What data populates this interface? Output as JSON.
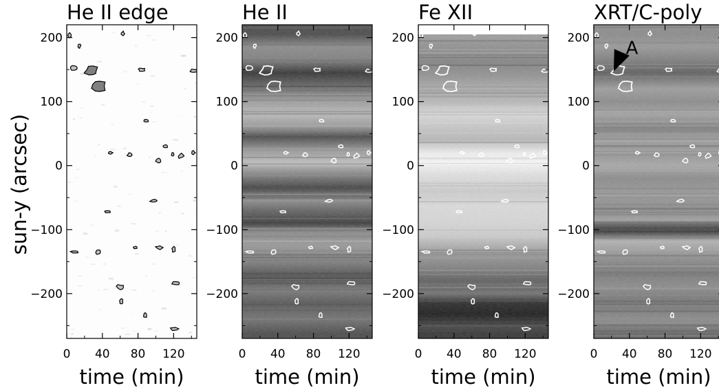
{
  "figure": {
    "ylabel": "sun-y (arcsec)"
  },
  "chart_data": [
    {
      "type": "heatmap",
      "title": "He II edge",
      "xlabel": "time (min)",
      "ylabel": "sun-y (arcsec)",
      "xlim": [
        0,
        146
      ],
      "ylim": [
        -270,
        220
      ],
      "xticks": [
        "0",
        "40",
        "80",
        "120"
      ],
      "xtick_values": [
        0,
        40,
        80,
        120
      ],
      "yticks": [
        "200",
        "100",
        "0",
        "−100",
        "−200"
      ],
      "ytick_values": [
        200,
        100,
        0,
        -100,
        -200
      ],
      "colormap": "white background with dark contour patches",
      "contours": "black",
      "contour_events": [
        {
          "t": 28,
          "y": 148
        },
        {
          "t": 36,
          "y": 124
        },
        {
          "t": 8,
          "y": 153
        },
        {
          "t": 84,
          "y": 150
        },
        {
          "t": 143,
          "y": 148
        },
        {
          "t": 63,
          "y": 206
        },
        {
          "t": 3,
          "y": 204
        },
        {
          "t": 14,
          "y": 187
        },
        {
          "t": 89,
          "y": 70
        },
        {
          "t": 49,
          "y": 20
        },
        {
          "t": 71,
          "y": 17
        },
        {
          "t": 111,
          "y": 30
        },
        {
          "t": 103,
          "y": 8
        },
        {
          "t": 119,
          "y": 17
        },
        {
          "t": 128,
          "y": 15
        },
        {
          "t": 142,
          "y": 20
        },
        {
          "t": 46,
          "y": -72
        },
        {
          "t": 98,
          "y": -55
        },
        {
          "t": 77,
          "y": -128
        },
        {
          "t": 104,
          "y": -128
        },
        {
          "t": 120,
          "y": -131
        },
        {
          "t": 9,
          "y": -135
        },
        {
          "t": 35,
          "y": -135
        },
        {
          "t": 122,
          "y": -184
        },
        {
          "t": 60,
          "y": -190
        },
        {
          "t": 61,
          "y": -212
        },
        {
          "t": 88,
          "y": -234
        },
        {
          "t": 121,
          "y": -255
        }
      ]
    },
    {
      "type": "heatmap",
      "title": "He II",
      "xlabel": "time (min)",
      "xlim": [
        0,
        146
      ],
      "ylim": [
        -270,
        220
      ],
      "xticks": [
        "0",
        "40",
        "80",
        "120"
      ],
      "xtick_values": [
        0,
        40,
        80,
        120
      ],
      "yticks": [
        "200",
        "100",
        "0",
        "−100",
        "−200"
      ],
      "ytick_values": [
        200,
        100,
        0,
        -100,
        -200
      ],
      "colormap": "grayscale",
      "contours": "white",
      "bands": [
        {
          "y": 205,
          "tone": 0.3
        },
        {
          "y": 185,
          "tone": 0.55
        },
        {
          "y": 165,
          "tone": 0.5
        },
        {
          "y": 145,
          "tone": 0.22
        },
        {
          "y": 125,
          "tone": 0.4
        },
        {
          "y": 100,
          "tone": 0.62
        },
        {
          "y": 80,
          "tone": 0.72
        },
        {
          "y": 60,
          "tone": 0.6
        },
        {
          "y": 45,
          "tone": 0.3
        },
        {
          "y": 25,
          "tone": 0.58
        },
        {
          "y": 5,
          "tone": 0.75
        },
        {
          "y": -15,
          "tone": 0.5
        },
        {
          "y": -35,
          "tone": 0.28
        },
        {
          "y": -55,
          "tone": 0.55
        },
        {
          "y": -70,
          "tone": 0.4
        },
        {
          "y": -90,
          "tone": 0.25
        },
        {
          "y": -105,
          "tone": 0.55
        },
        {
          "y": -125,
          "tone": 0.6
        },
        {
          "y": -150,
          "tone": 0.5
        },
        {
          "y": -175,
          "tone": 0.3
        },
        {
          "y": -195,
          "tone": 0.48
        },
        {
          "y": -215,
          "tone": 0.35
        },
        {
          "y": -240,
          "tone": 0.45
        },
        {
          "y": -262,
          "tone": 0.3
        }
      ]
    },
    {
      "type": "heatmap",
      "title": "Fe XII",
      "xlabel": "time (min)",
      "xlim": [
        0,
        146
      ],
      "ylim": [
        -270,
        220
      ],
      "xticks": [
        "0",
        "40",
        "80",
        "120"
      ],
      "xtick_values": [
        0,
        40,
        80,
        120
      ],
      "yticks": [
        "200",
        "100",
        "0",
        "−100",
        "−200"
      ],
      "ytick_values": [
        200,
        100,
        0,
        -100,
        -200
      ],
      "colormap": "grayscale",
      "contours": "white",
      "bands": [
        {
          "y": 200,
          "tone": 0.62
        },
        {
          "y": 180,
          "tone": 0.55
        },
        {
          "y": 160,
          "tone": 0.52
        },
        {
          "y": 140,
          "tone": 0.58
        },
        {
          "y": 120,
          "tone": 0.68
        },
        {
          "y": 100,
          "tone": 0.72
        },
        {
          "y": 80,
          "tone": 0.85
        },
        {
          "y": 60,
          "tone": 0.78
        },
        {
          "y": 40,
          "tone": 0.72
        },
        {
          "y": 20,
          "tone": 0.93
        },
        {
          "y": 5,
          "tone": 0.97
        },
        {
          "y": -15,
          "tone": 0.88
        },
        {
          "y": -40,
          "tone": 0.8
        },
        {
          "y": -65,
          "tone": 0.86
        },
        {
          "y": -90,
          "tone": 0.84
        },
        {
          "y": -110,
          "tone": 0.8
        },
        {
          "y": -135,
          "tone": 0.62
        },
        {
          "y": -160,
          "tone": 0.5
        },
        {
          "y": -180,
          "tone": 0.38
        },
        {
          "y": -200,
          "tone": 0.45
        },
        {
          "y": -215,
          "tone": 0.18
        },
        {
          "y": -232,
          "tone": 0.12
        },
        {
          "y": -250,
          "tone": 0.28
        },
        {
          "y": -265,
          "tone": 0.22
        }
      ]
    },
    {
      "type": "heatmap",
      "title": "XRT/C-poly",
      "xlabel": "time (min)",
      "xlim": [
        0,
        146
      ],
      "ylim": [
        -270,
        220
      ],
      "xticks": [
        "0",
        "40",
        "80",
        "120"
      ],
      "xtick_values": [
        0,
        40,
        80,
        120
      ],
      "yticks": [
        "200",
        "100",
        "0",
        "−100",
        "−200"
      ],
      "ytick_values": [
        200,
        100,
        0,
        -100,
        -200
      ],
      "colormap": "grayscale",
      "contours": "white",
      "annotations": [
        {
          "text": "A",
          "x": 36,
          "y": 185,
          "arrow_to": [
            18,
            149
          ]
        }
      ],
      "bands": [
        {
          "y": 205,
          "tone": 0.55
        },
        {
          "y": 185,
          "tone": 0.6
        },
        {
          "y": 165,
          "tone": 0.5
        },
        {
          "y": 145,
          "tone": 0.38
        },
        {
          "y": 120,
          "tone": 0.62
        },
        {
          "y": 100,
          "tone": 0.55
        },
        {
          "y": 80,
          "tone": 0.64
        },
        {
          "y": 60,
          "tone": 0.5
        },
        {
          "y": 40,
          "tone": 0.62
        },
        {
          "y": 20,
          "tone": 0.58
        },
        {
          "y": 0,
          "tone": 0.66
        },
        {
          "y": -20,
          "tone": 0.55
        },
        {
          "y": -45,
          "tone": 0.6
        },
        {
          "y": -70,
          "tone": 0.55
        },
        {
          "y": -85,
          "tone": 0.62
        },
        {
          "y": -100,
          "tone": 0.15
        },
        {
          "y": -118,
          "tone": 0.7
        },
        {
          "y": -140,
          "tone": 0.58
        },
        {
          "y": -165,
          "tone": 0.48
        },
        {
          "y": -190,
          "tone": 0.55
        },
        {
          "y": -215,
          "tone": 0.45
        },
        {
          "y": -240,
          "tone": 0.55
        },
        {
          "y": -262,
          "tone": 0.42
        }
      ]
    }
  ]
}
